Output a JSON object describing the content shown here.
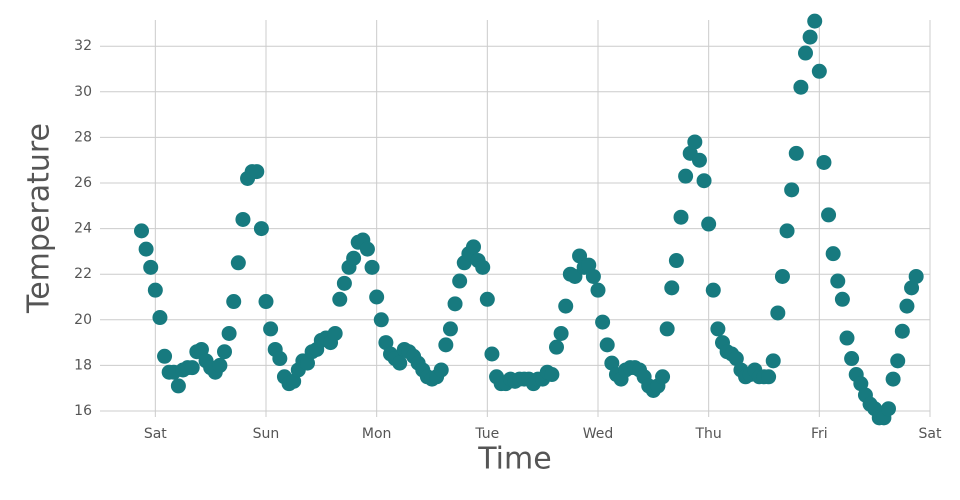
{
  "chart_data": {
    "type": "scatter",
    "x_label": "Time",
    "y_label": "Temperature",
    "color": "#177a7f",
    "grid": true,
    "xlim": [
      -12,
      168
    ],
    "xticks": [
      {
        "value": 0,
        "label": "Sat"
      },
      {
        "value": 24,
        "label": "Sun"
      },
      {
        "value": 48,
        "label": "Mon"
      },
      {
        "value": 72,
        "label": "Tue"
      },
      {
        "value": 96,
        "label": "Wed"
      },
      {
        "value": 120,
        "label": "Thu"
      },
      {
        "value": 144,
        "label": "Fri"
      },
      {
        "value": 168,
        "label": "Sat"
      }
    ],
    "ylim": [
      16,
      33.5
    ],
    "yticks": [
      16,
      18,
      20,
      22,
      24,
      26,
      28,
      30,
      32
    ],
    "x": [
      -3,
      -2,
      -1,
      0,
      1,
      2,
      3,
      4,
      5,
      6,
      7,
      8,
      9,
      10,
      11,
      12,
      13,
      14,
      15,
      16,
      17,
      18,
      19,
      20,
      21,
      22,
      23,
      24,
      25,
      26,
      27,
      28,
      29,
      30,
      31,
      32,
      33,
      34,
      35,
      36,
      37,
      38,
      39,
      40,
      41,
      42,
      43,
      44,
      45,
      46,
      47,
      48,
      49,
      50,
      51,
      52,
      53,
      54,
      55,
      56,
      57,
      58,
      59,
      60,
      61,
      62,
      63,
      64,
      65,
      66,
      67,
      68,
      69,
      70,
      71,
      72,
      73,
      74,
      75,
      76,
      77,
      78,
      79,
      80,
      81,
      82,
      83,
      84,
      85,
      86,
      87,
      88,
      89,
      90,
      91,
      92,
      93,
      94,
      95,
      96,
      97,
      98,
      99,
      100,
      101,
      102,
      103,
      104,
      105,
      106,
      107,
      108,
      109,
      110,
      111,
      112,
      113,
      114,
      115,
      116,
      117,
      118,
      119,
      120,
      121,
      122,
      123,
      124,
      125,
      126,
      127,
      128,
      129,
      130,
      131,
      132,
      133,
      134,
      135,
      136,
      137,
      138,
      139,
      140,
      141,
      142,
      143,
      144,
      145,
      146,
      147,
      148,
      149,
      150,
      151,
      152,
      153,
      154,
      155,
      156,
      157,
      158,
      159,
      160,
      161,
      162,
      163,
      164,
      165
    ],
    "values": [
      23.9,
      23.1,
      22.3,
      21.3,
      20.1,
      18.4,
      17.7,
      17.7,
      17.1,
      17.8,
      17.9,
      17.9,
      18.6,
      18.7,
      18.2,
      17.9,
      17.7,
      18.0,
      18.6,
      19.4,
      20.8,
      22.5,
      24.4,
      26.2,
      26.5,
      26.5,
      24.0,
      20.8,
      19.6,
      18.7,
      18.3,
      17.5,
      17.2,
      17.3,
      17.8,
      18.2,
      18.1,
      18.6,
      18.7,
      19.1,
      19.2,
      19.0,
      19.4,
      20.9,
      21.6,
      22.3,
      22.7,
      23.4,
      23.5,
      23.1,
      22.3,
      21.0,
      20.0,
      19.0,
      18.5,
      18.3,
      18.1,
      18.7,
      18.6,
      18.4,
      18.1,
      17.8,
      17.5,
      17.4,
      17.5,
      17.8,
      18.9,
      19.6,
      20.7,
      21.7,
      22.5,
      22.9,
      23.2,
      22.6,
      22.3,
      20.9,
      18.5,
      17.5,
      17.2,
      17.2,
      17.4,
      17.3,
      17.4,
      17.4,
      17.4,
      17.2,
      17.4,
      17.4,
      17.7,
      17.6,
      18.8,
      19.4,
      20.6,
      22.0,
      21.9,
      22.8,
      22.3,
      22.4,
      21.9,
      21.3,
      19.9,
      18.9,
      18.1,
      17.6,
      17.4,
      17.8,
      17.9,
      17.9,
      17.8,
      17.5,
      17.1,
      16.9,
      17.1,
      17.5,
      19.6,
      21.4,
      22.6,
      24.5,
      26.3,
      27.3,
      27.8,
      27.0,
      26.1,
      24.2,
      21.3,
      19.6,
      19.0,
      18.6,
      18.5,
      18.3,
      17.8,
      17.5,
      17.6,
      17.8,
      17.5,
      17.5,
      17.5,
      18.2,
      20.3,
      21.9,
      23.9,
      25.7,
      27.3,
      30.2,
      31.7,
      32.4,
      33.1,
      30.9,
      26.9,
      24.6,
      22.9,
      21.7,
      20.9,
      19.2,
      18.3,
      17.6,
      17.2,
      16.7,
      16.3,
      16.1,
      15.7,
      15.7,
      16.1,
      17.4,
      18.2,
      19.5,
      20.6,
      21.4,
      21.9
    ]
  }
}
